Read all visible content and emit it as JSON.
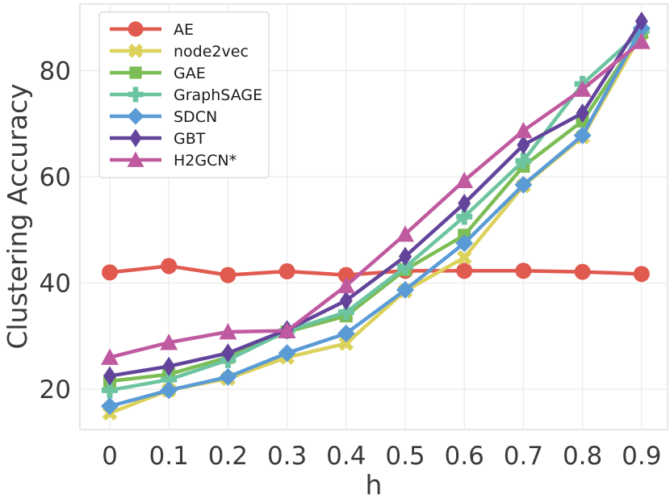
{
  "chart_data": {
    "type": "line",
    "title": "",
    "xlabel": "h",
    "ylabel": "Clustering Accuracy",
    "categories": [
      "0",
      "0.1",
      "0.2",
      "0.3",
      "0.4",
      "0.5",
      "0.6",
      "0.7",
      "0.8",
      "0.9"
    ],
    "yticks": [
      "20",
      "40",
      "60",
      "80"
    ],
    "ylim": [
      14,
      93
    ],
    "grid": true,
    "legend_position": "top-left",
    "series": [
      {
        "name": "AE",
        "marker": "circle",
        "color": "#e05a50",
        "values": [
          42.0,
          43.2,
          41.5,
          42.2,
          41.5,
          42.3,
          42.3,
          42.3,
          42.1,
          41.7
        ]
      },
      {
        "name": "node2vec",
        "marker": "x",
        "color": "#dcd15a",
        "values": [
          15.5,
          19.8,
          22.0,
          26.0,
          28.6,
          38.5,
          44.8,
          58.3,
          67.5,
          87.0
        ]
      },
      {
        "name": "GAE",
        "marker": "square",
        "color": "#7cbd55",
        "values": [
          21.5,
          22.8,
          26.0,
          30.8,
          33.8,
          42.5,
          49.0,
          62.0,
          70.5,
          87.2
        ]
      },
      {
        "name": "GraphSAGE",
        "marker": "plus",
        "color": "#6cc4a0",
        "values": [
          19.8,
          21.8,
          25.5,
          31.0,
          34.5,
          43.0,
          52.5,
          63.0,
          77.5,
          87.5
        ]
      },
      {
        "name": "SDCN",
        "marker": "diamond",
        "color": "#5b9bd5",
        "values": [
          16.8,
          19.8,
          22.3,
          26.8,
          30.5,
          38.7,
          47.5,
          58.5,
          67.8,
          88.0
        ]
      },
      {
        "name": "GBT",
        "marker": "thin-diamond",
        "color": "#62449b",
        "values": [
          22.5,
          24.3,
          26.8,
          31.2,
          36.7,
          45.0,
          55.0,
          66.0,
          72.0,
          89.3
        ]
      },
      {
        "name": "H2GCN*",
        "marker": "triangle",
        "color": "#c05aa0",
        "values": [
          26.0,
          28.8,
          30.8,
          31.0,
          39.5,
          49.2,
          59.3,
          68.7,
          76.5,
          85.5
        ]
      }
    ]
  }
}
